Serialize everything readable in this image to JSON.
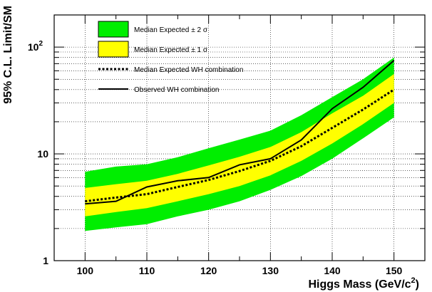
{
  "chart_data": {
    "type": "line",
    "xlabel": "Higgs Mass (GeV/c",
    "xlabel_sup": "2",
    "xlabel_close": ")",
    "ylabel": "95% C.L. Limit/SM",
    "xlim": [
      95,
      155
    ],
    "ylim": [
      1,
      200
    ],
    "yscale": "log",
    "grid": true,
    "legend_position": "top-left",
    "x_ticks": [
      {
        "value": 100,
        "label": "100"
      },
      {
        "value": 110,
        "label": "110"
      },
      {
        "value": 120,
        "label": "120"
      },
      {
        "value": 130,
        "label": "130"
      },
      {
        "value": 140,
        "label": "140"
      },
      {
        "value": 150,
        "label": "150"
      }
    ],
    "y_ticks": [
      {
        "value": 1,
        "label": "1"
      },
      {
        "value": 10,
        "label": "10"
      },
      {
        "value": 100,
        "label": "10",
        "sup": "2"
      }
    ],
    "x": [
      100,
      105,
      110,
      115,
      120,
      125,
      130,
      135,
      140,
      145,
      150
    ],
    "band_2sigma": {
      "color": "#00ee00",
      "lower": [
        1.9,
        2.05,
        2.2,
        2.6,
        3.0,
        3.6,
        4.6,
        6.2,
        9.0,
        14.0,
        22.0
      ],
      "upper": [
        6.8,
        7.6,
        8.0,
        9.3,
        11.3,
        13.6,
        16.5,
        23.0,
        34.0,
        50.0,
        80.0
      ]
    },
    "band_1sigma": {
      "color": "#ffff00",
      "lower": [
        2.6,
        2.85,
        3.1,
        3.6,
        4.2,
        5.0,
        6.3,
        8.6,
        12.5,
        19.0,
        30.0
      ],
      "upper": [
        4.8,
        5.2,
        5.6,
        6.5,
        7.8,
        9.4,
        11.6,
        16.0,
        24.0,
        35.0,
        56.0
      ]
    },
    "series": [
      {
        "name": "Median Expected WH combination",
        "style": "dotted",
        "values": [
          3.6,
          3.9,
          4.2,
          4.9,
          5.7,
          6.9,
          8.6,
          11.8,
          17.5,
          26.0,
          40.0
        ]
      },
      {
        "name": "Observed WH combination",
        "style": "solid",
        "values": [
          3.4,
          3.6,
          4.9,
          5.6,
          6.0,
          7.9,
          9.0,
          13.5,
          26.5,
          42.0,
          75.0
        ]
      }
    ],
    "legend": [
      {
        "key": "band2",
        "label": "Median Expected",
        "sigma": "± 2 σ"
      },
      {
        "key": "band1",
        "label": "Median Expected",
        "sigma": "± 1 σ"
      },
      {
        "key": "expected",
        "label": "Median Expected WH combination"
      },
      {
        "key": "observed",
        "label": "Observed WH combination"
      }
    ]
  }
}
